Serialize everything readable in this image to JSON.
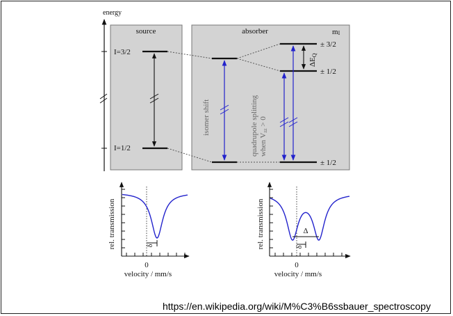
{
  "energy_diagram": {
    "axis_label": "energy",
    "source_label": "source",
    "absorber_label": "absorber",
    "mi_label": "mI",
    "source_levels": [
      "I=3/2",
      "I=1/2"
    ],
    "absorber_levels": [
      "± 3/2",
      "± 1/2",
      "± 1/2"
    ],
    "isomer_shift_label": "isomer  shift",
    "quadrupole_line1": "quadrupole splitting",
    "quadrupole_line2": "when V",
    "quadrupole_sub": "zz",
    "quadrupole_tail": " > 0",
    "delta_eq_label": "ΔE",
    "delta_eq_sub": "Q",
    "colors": {
      "panel": "#d3d3d3",
      "transition": "#2222cc",
      "arrow": "#111111"
    }
  },
  "spectrum_left": {
    "ylabel": "rel. transmission",
    "xlabel": "velocity / mm/s",
    "zero_tick": "0",
    "shift_label": "δ"
  },
  "spectrum_right": {
    "ylabel": "rel. transmission",
    "xlabel": "velocity / mm/s",
    "zero_tick": "0",
    "shift_label": "δ",
    "delta_label": "Δ"
  },
  "source_url": "https://en.wikipedia.org/wiki/M%C3%B6ssbauer_spectroscopy"
}
